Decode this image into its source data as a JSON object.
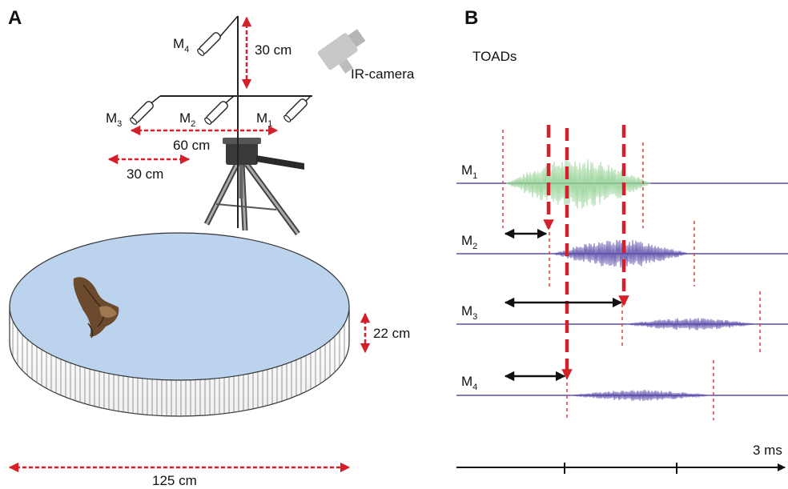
{
  "panel_a": {
    "label": "A",
    "microphones": [
      {
        "main": "M",
        "sub": "4"
      },
      {
        "main": "M",
        "sub": "3"
      },
      {
        "main": "M",
        "sub": "2"
      },
      {
        "main": "M",
        "sub": "1"
      }
    ],
    "camera_label": "IR-camera",
    "dim_vertical_mic": "30 cm",
    "dim_array_width": "60 cm",
    "dim_mic_spacing": "30 cm",
    "dim_arena_height": "22 cm",
    "dim_arena_diameter": "125 cm"
  },
  "panel_b": {
    "label": "B",
    "title": "TOADs",
    "channels": [
      {
        "main": "M",
        "sub": "1"
      },
      {
        "main": "M",
        "sub": "2"
      },
      {
        "main": "M",
        "sub": "3"
      },
      {
        "main": "M",
        "sub": "4"
      }
    ],
    "time_scale_label": "3 ms"
  },
  "colors": {
    "dim_arrow": "#d4202a",
    "arena_fill": "#bcd3ee",
    "trace_line": "#3a2d8f",
    "m1_signal": "#8fd08f",
    "signal": "#5a4aa8"
  }
}
